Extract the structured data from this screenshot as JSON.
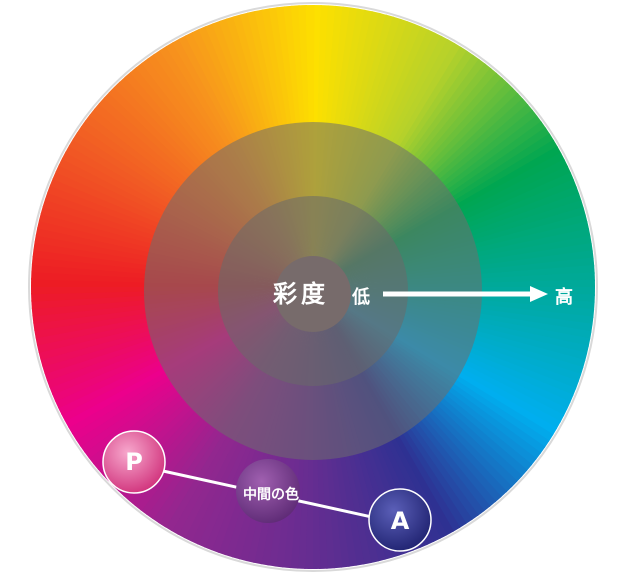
{
  "diagram": {
    "center_title": "彩度",
    "saturation_low": "低",
    "saturation_high": "高",
    "mid_color_label": "中間の色",
    "marker_p": "P",
    "marker_a": "A"
  },
  "colors": {
    "hue_stops": [
      "#fde000",
      "#b5d12b",
      "#00a651",
      "#00a99d",
      "#00aeef",
      "#2e3192",
      "#662d91",
      "#92278f",
      "#ec008c",
      "#ed1c24",
      "#f15a24",
      "#f7941d"
    ],
    "marker_p": "#e6418a",
    "marker_a": "#2b3088",
    "mid_color": "#7a3a8c",
    "arrow": "#ffffff",
    "rim": "#d9d9d9"
  }
}
